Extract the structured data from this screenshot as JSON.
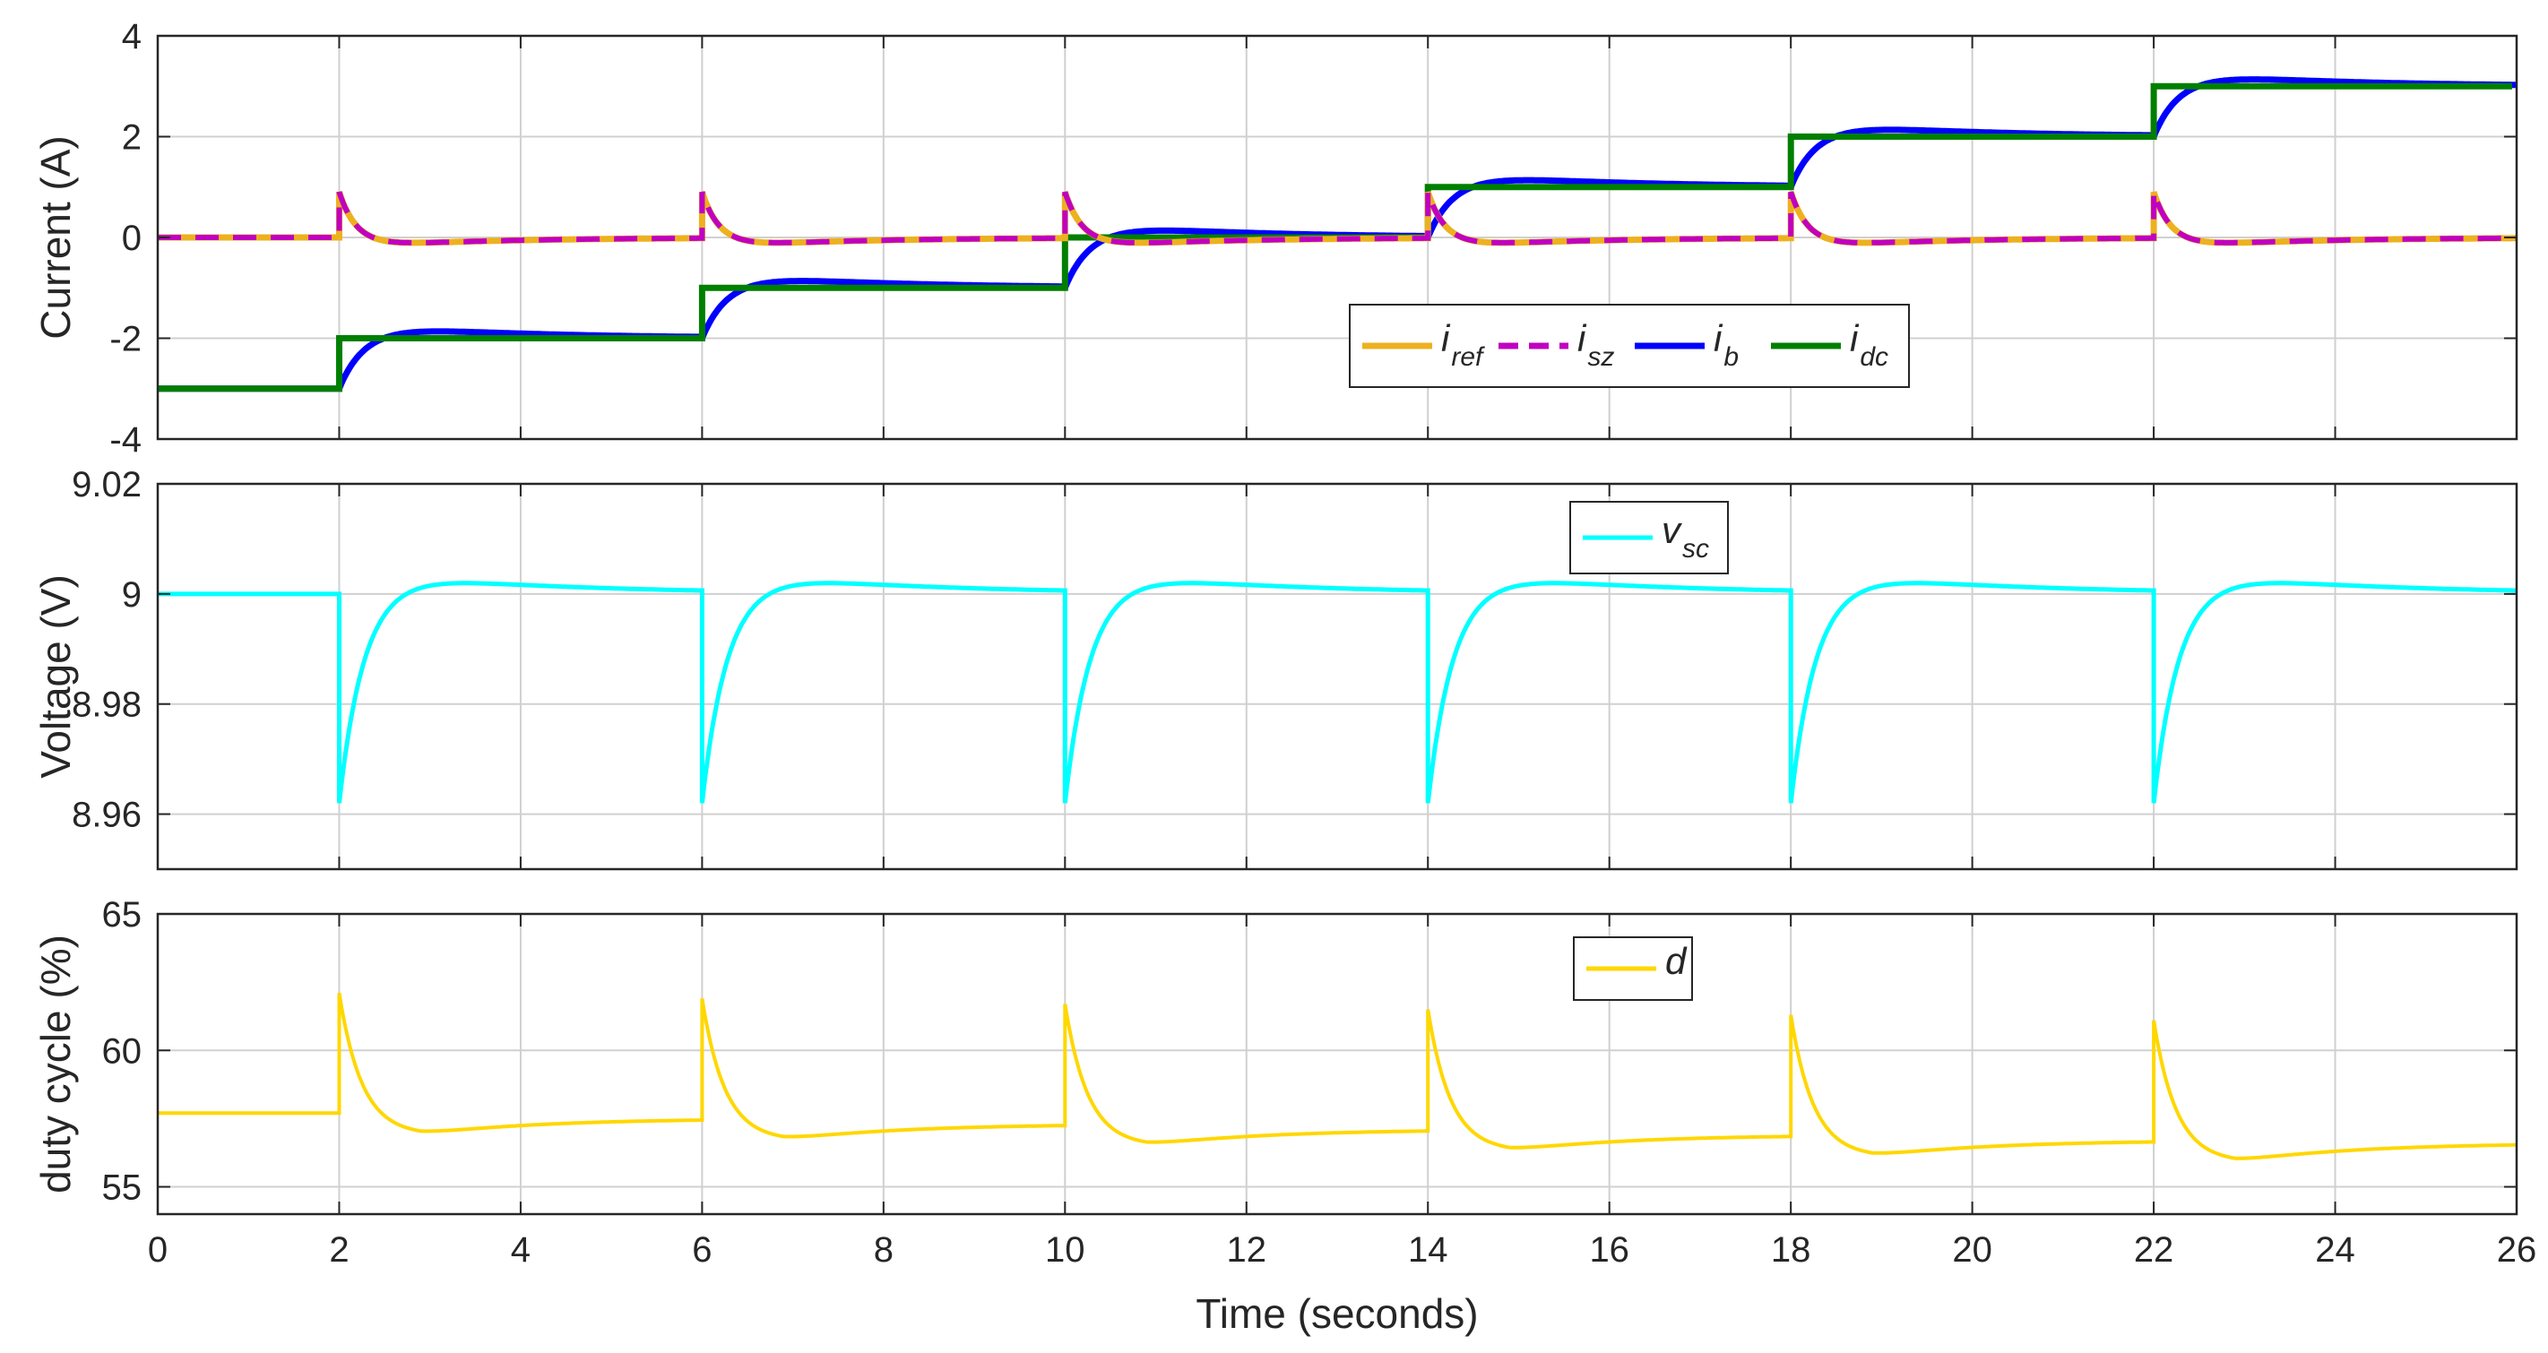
{
  "figure": {
    "xlabel": "Time (seconds)",
    "x_ticks": [
      "0",
      "2",
      "4",
      "6",
      "8",
      "10",
      "12",
      "14",
      "16",
      "18",
      "20",
      "22",
      "24",
      "26"
    ]
  },
  "colors": {
    "i_ref": "#EDB120",
    "i_sz": "#C000C0",
    "i_b": "#0000FF",
    "i_dc": "#007F00",
    "v_sc": "#00FFFF",
    "d": "#FFD700",
    "grid": "#d0d0d0",
    "axis": "#262626"
  },
  "chart_data": [
    {
      "type": "line",
      "ylabel": "Current (A)",
      "xlim": [
        0,
        26
      ],
      "ylim": [
        -4,
        4
      ],
      "y_ticks": [
        "4",
        "2",
        "0",
        "-2",
        "-4"
      ],
      "grid": true,
      "legend_location": "center",
      "step_times": [
        2,
        6,
        10,
        14,
        18,
        22
      ],
      "levels": [
        -3,
        -2,
        -1,
        0,
        1,
        2,
        3
      ],
      "series": [
        {
          "key": "i_ref",
          "legend_main": "i",
          "legend_sub": "ref",
          "style": "solid",
          "peak": 0.9,
          "undershoot": -0.15,
          "settles_to": 0
        },
        {
          "key": "i_sz",
          "legend_main": "i",
          "legend_sub": "sz",
          "style": "dashed",
          "peak": 0.9,
          "undershoot": -0.15,
          "settles_to": 0
        },
        {
          "key": "i_b",
          "legend_main": "i",
          "legend_sub": "b",
          "style": "solid",
          "overshoot": 0.15,
          "follows": "i_dc"
        },
        {
          "key": "i_dc",
          "legend_main": "i",
          "legend_sub": "dc",
          "style": "solid",
          "values_per_interval": [
            -3,
            -2,
            -1,
            0,
            1,
            2,
            3
          ]
        }
      ]
    },
    {
      "type": "line",
      "ylabel": "Voltage (V)",
      "xlim": [
        0,
        26
      ],
      "ylim": [
        8.95,
        9.02
      ],
      "y_ticks": [
        "9.02",
        "9",
        "8.98",
        "8.96"
      ],
      "grid": true,
      "legend_location": "top-center",
      "series": [
        {
          "key": "v_sc",
          "legend_main": "v",
          "legend_sub": "sc",
          "baseline": 9.0,
          "dip_minimum": 8.962,
          "overshoot_peak": 9.002,
          "dip_times": [
            2,
            6,
            10,
            14,
            18,
            22
          ]
        }
      ]
    },
    {
      "type": "line",
      "ylabel": "duty cycle (%)",
      "xlim": [
        0,
        26
      ],
      "ylim": [
        54,
        65
      ],
      "y_ticks": [
        "65",
        "60",
        "55"
      ],
      "grid": true,
      "legend_location": "top-center",
      "series": [
        {
          "key": "d",
          "legend_main": "d",
          "legend_sub": "",
          "initial": 57.7,
          "spike_times": [
            2,
            6,
            10,
            14,
            18,
            22
          ],
          "spike_peaks": [
            62.1,
            61.9,
            61.7,
            61.5,
            61.3,
            61.1
          ],
          "trough_values": [
            56.9,
            56.7,
            56.5,
            56.3,
            56.1,
            55.9
          ],
          "end_values": [
            57.5,
            57.3,
            57.1,
            56.9,
            56.7,
            56.6
          ]
        }
      ]
    }
  ]
}
